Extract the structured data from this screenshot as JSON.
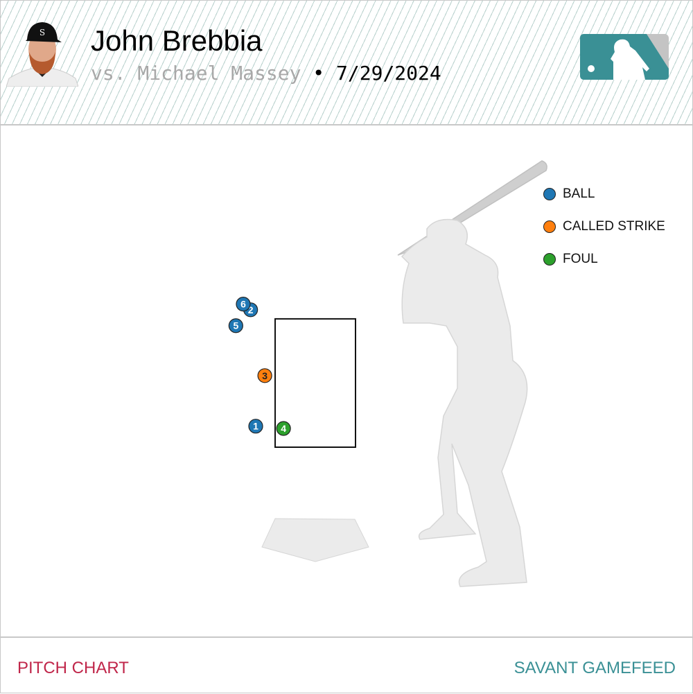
{
  "header": {
    "pitcher_name": "John Brebbia",
    "opponent": "vs. Michael Massey",
    "separator": "•",
    "date": "7/29/2024",
    "logo": "mlb-logo",
    "photo": "player-headshot"
  },
  "chart_data": {
    "type": "scatter",
    "units": "feet",
    "strike_zone": {
      "x": [
        -0.708,
        0.708
      ],
      "z": [
        1.5,
        3.76
      ]
    },
    "pitches": [
      {
        "label": "1",
        "result": "BALL",
        "x": -1.05,
        "z": 1.87
      },
      {
        "label": "2",
        "result": "BALL",
        "x": -1.14,
        "z": 3.92
      },
      {
        "label": "3",
        "result": "CALLED STRIKE",
        "x": -0.89,
        "z": 2.76
      },
      {
        "label": "4",
        "result": "FOUL",
        "x": -0.56,
        "z": 1.83
      },
      {
        "label": "5",
        "result": "BALL",
        "x": -1.4,
        "z": 3.64
      },
      {
        "label": "6",
        "result": "BALL",
        "x": -1.27,
        "z": 4.02
      }
    ],
    "legend": [
      {
        "label": "BALL",
        "color": "#1f77b4"
      },
      {
        "label": "CALLED STRIKE",
        "color": "#ff7f0e"
      },
      {
        "label": "FOUL",
        "color": "#2ca02c"
      }
    ],
    "legend_placement": "top-right"
  },
  "footer": {
    "left": "PITCH CHART",
    "right": "SAVANT GAMEFEED"
  }
}
